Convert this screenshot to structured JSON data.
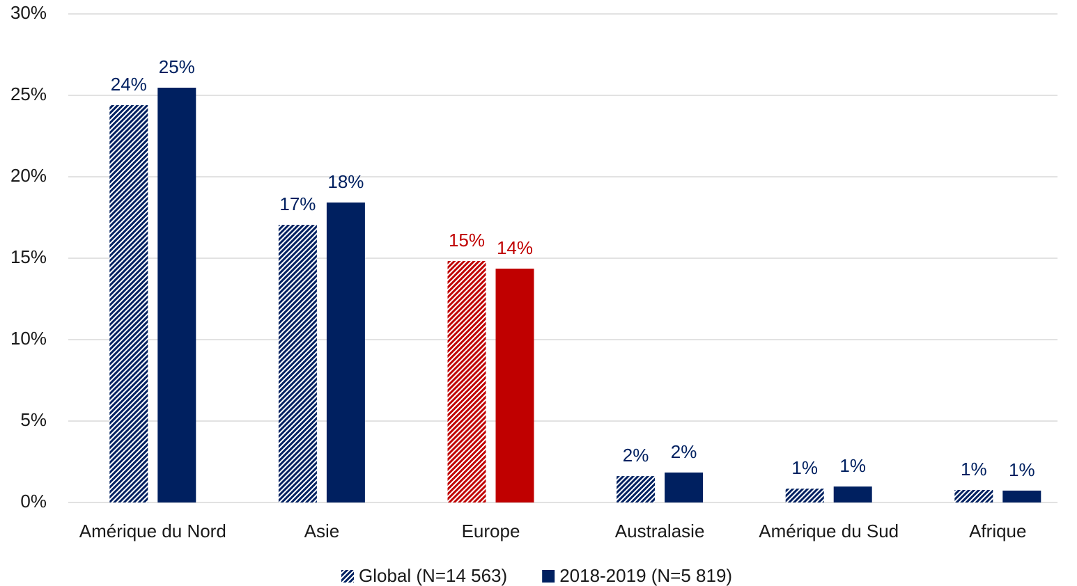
{
  "chart_data": {
    "type": "bar",
    "categories": [
      "Amérique du Nord",
      "Asie",
      "Europe",
      "Australasie",
      "Amérique du Sud",
      "Afrique"
    ],
    "series": [
      {
        "name": "Global (N=14 563)",
        "pattern": "hatch",
        "color": "#002060",
        "colors": [
          "#002060",
          "#002060",
          "#c00000",
          "#002060",
          "#002060",
          "#002060"
        ],
        "values": [
          24.4,
          17.05,
          14.83,
          1.62,
          0.85,
          0.77
        ],
        "value_labels": [
          "24%",
          "17%",
          "15%",
          "2%",
          "1%",
          "1%"
        ]
      },
      {
        "name": "2018-2019 (N=5 819)",
        "pattern": "solid",
        "color": "#002060",
        "colors": [
          "#002060",
          "#002060",
          "#c00000",
          "#002060",
          "#002060",
          "#002060"
        ],
        "values": [
          25.47,
          18.42,
          14.36,
          1.84,
          0.98,
          0.73
        ],
        "value_labels": [
          "25%",
          "18%",
          "14%",
          "2%",
          "1%",
          "1%"
        ]
      }
    ],
    "ylim": [
      0,
      30
    ],
    "yticks": [
      {
        "value": 0,
        "label": "0%"
      },
      {
        "value": 5,
        "label": "5%"
      },
      {
        "value": 10,
        "label": "10%"
      },
      {
        "value": 15,
        "label": "15%"
      },
      {
        "value": 20,
        "label": "20%"
      },
      {
        "value": 25,
        "label": "25%"
      },
      {
        "value": 30,
        "label": "30%"
      }
    ],
    "grid": true,
    "legend": "bottom"
  }
}
